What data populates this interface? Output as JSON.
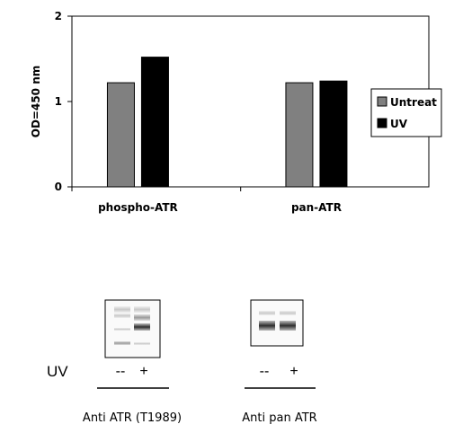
{
  "chart_data": {
    "type": "bar",
    "title": "",
    "xlabel": "",
    "ylabel": "OD=450 nm",
    "ylim": [
      0,
      2
    ],
    "yticks": [
      "0",
      "1",
      "2"
    ],
    "categories": [
      "phospho-ATR",
      "pan-ATR"
    ],
    "series": [
      {
        "name": "Untreat",
        "color": "#808080",
        "values": [
          1.22,
          1.22
        ]
      },
      {
        "name": "UV",
        "color": "#000000",
        "values": [
          1.52,
          1.24
        ]
      }
    ],
    "grid": false,
    "legend_position": "right"
  },
  "blots": {
    "row_label": "UV",
    "panels": [
      {
        "caption": "Anti ATR (T1989)",
        "lanes": [
          "--",
          "+"
        ]
      },
      {
        "caption": "Anti pan ATR",
        "lanes": [
          "--",
          "+"
        ]
      }
    ]
  }
}
